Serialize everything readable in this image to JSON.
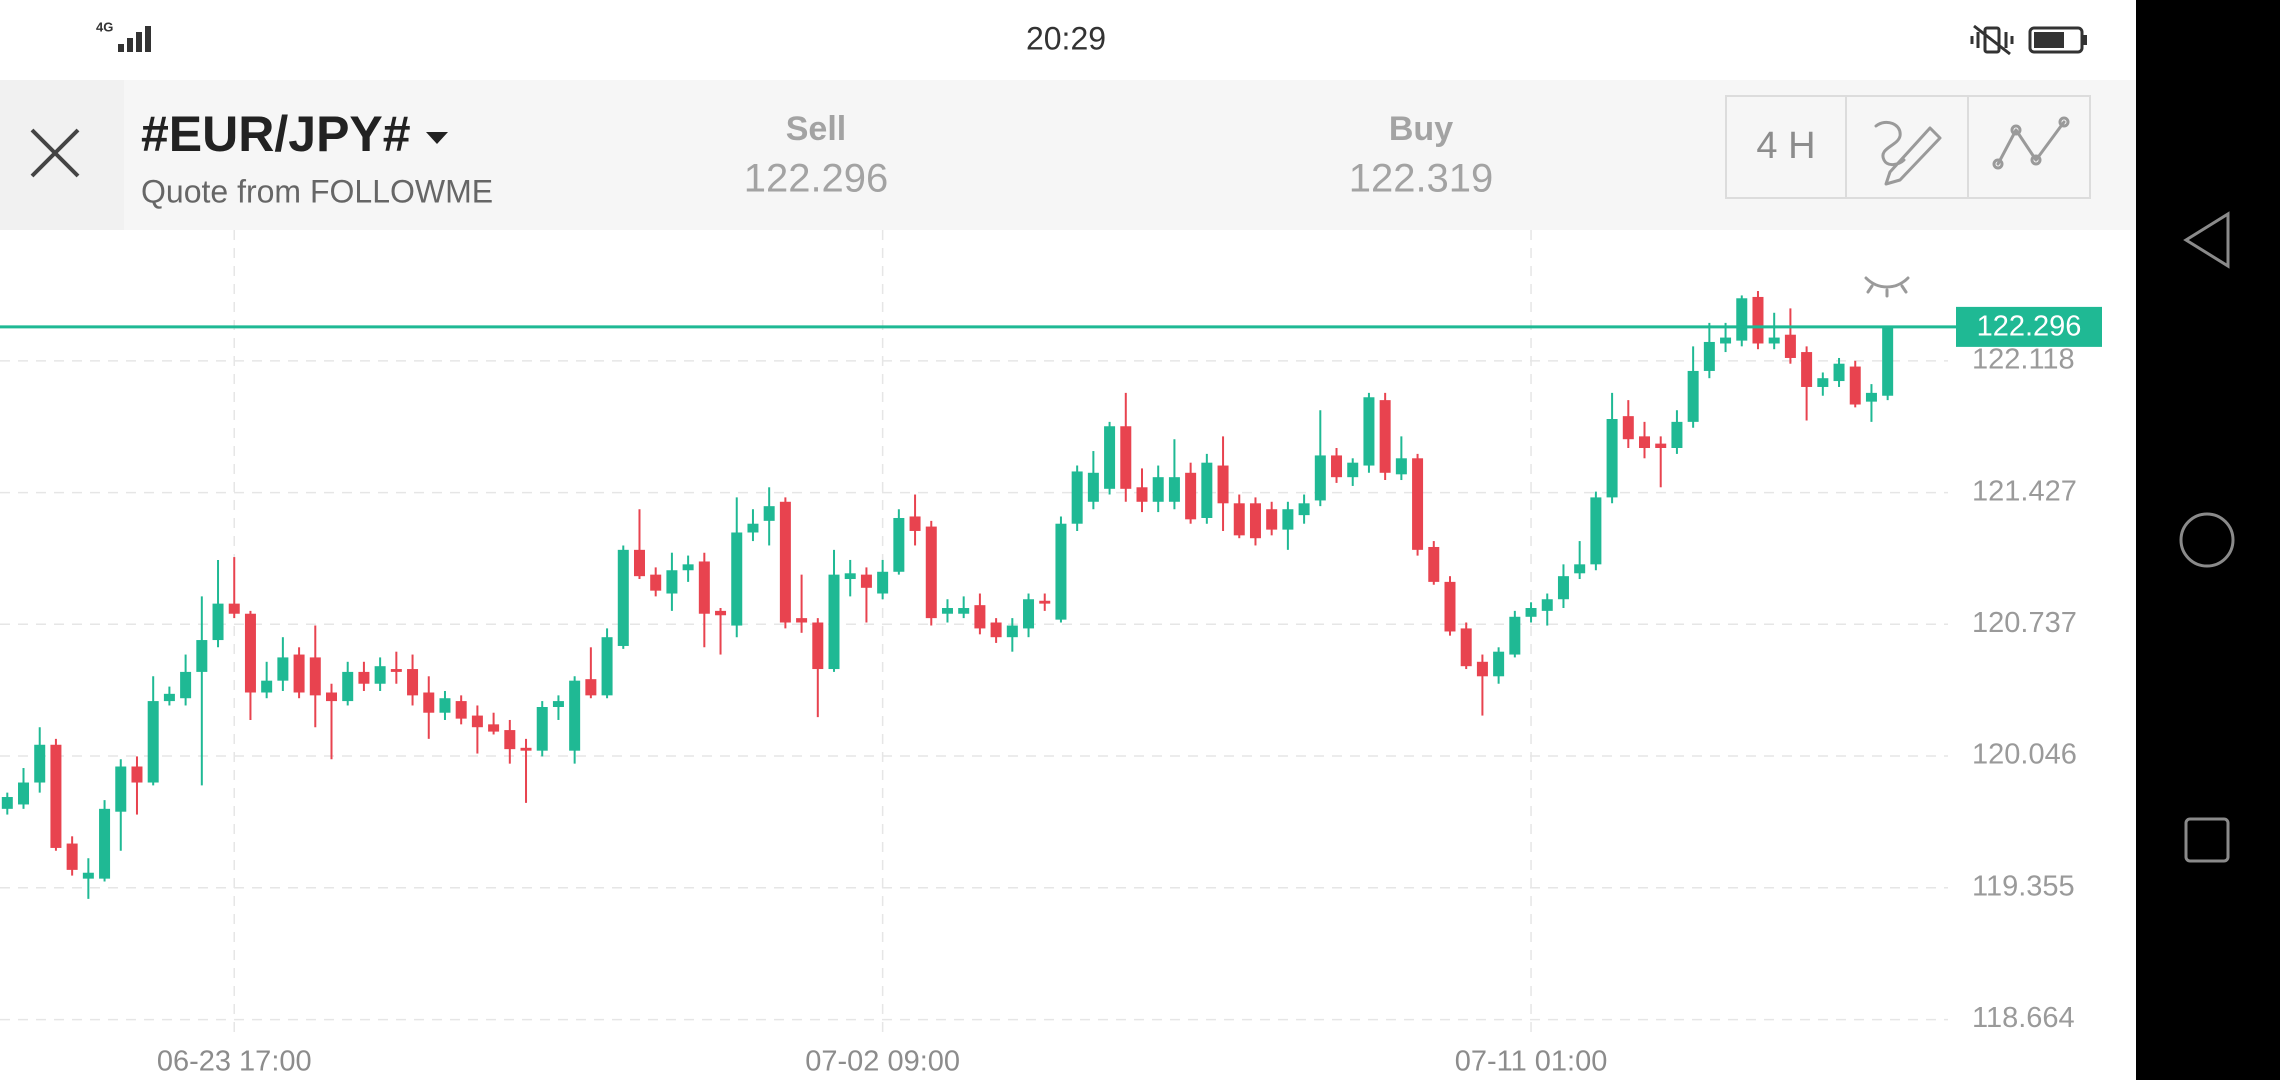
{
  "status_bar": {
    "network": "4G",
    "time": "20:29"
  },
  "header": {
    "symbol": "#EUR/JPY#",
    "source": "Quote from FOLLOWME",
    "sell_label": "Sell",
    "sell": 122.296,
    "buy_label": "Buy",
    "buy": 122.319,
    "timeframe": "4 H"
  },
  "chart_data": {
    "type": "candlestick",
    "categories": [
      null,
      null,
      null,
      null,
      null,
      null,
      null,
      null,
      null,
      null,
      null,
      null,
      null,
      null,
      "06-23 17:00",
      null,
      null,
      null,
      null,
      null,
      null,
      null,
      null,
      null,
      null,
      null,
      null,
      null,
      null,
      null,
      null,
      null,
      null,
      null,
      null,
      null,
      null,
      null,
      null,
      null,
      null,
      null,
      null,
      null,
      null,
      null,
      null,
      null,
      null,
      null,
      null,
      null,
      null,
      null,
      "07-02 09:00",
      null,
      null,
      null,
      null,
      null,
      null,
      null,
      null,
      null,
      null,
      null,
      null,
      null,
      null,
      null,
      null,
      null,
      null,
      null,
      null,
      null,
      null,
      null,
      null,
      null,
      null,
      null,
      null,
      null,
      null,
      null,
      null,
      null,
      null,
      null,
      null,
      null,
      null,
      null,
      "07-11 01:00",
      null,
      null,
      null,
      null,
      null,
      null,
      null,
      null,
      null,
      null,
      null,
      null,
      null,
      null,
      null,
      null,
      null,
      null,
      null,
      null,
      null,
      null
    ],
    "open": [
      119.769,
      119.792,
      119.907,
      120.105,
      119.587,
      119.403,
      119.403,
      119.754,
      119.991,
      119.907,
      120.334,
      120.349,
      120.487,
      120.654,
      120.845,
      120.792,
      120.379,
      120.441,
      120.578,
      120.563,
      120.379,
      120.334,
      120.487,
      120.425,
      120.502,
      120.502,
      120.379,
      120.273,
      120.334,
      120.258,
      120.212,
      120.182,
      120.089,
      120.074,
      120.303,
      120.074,
      120.449,
      120.364,
      120.623,
      121.127,
      120.997,
      120.898,
      121.02,
      121.066,
      120.807,
      120.73,
      121.218,
      121.279,
      121.379,
      120.769,
      120.746,
      120.502,
      120.974,
      120.997,
      120.898,
      121.012,
      121.302,
      121.249,
      120.792,
      120.792,
      120.837,
      120.746,
      120.669,
      120.715,
      120.86,
      120.761,
      121.264,
      121.379,
      121.447,
      121.775,
      121.455,
      121.379,
      121.379,
      121.531,
      121.294,
      121.569,
      121.371,
      121.371,
      121.34,
      121.233,
      121.309,
      121.386,
      121.622,
      121.508,
      121.569,
      121.912,
      121.523,
      121.607,
      121.142,
      120.959,
      120.715,
      120.54,
      120.464,
      120.578,
      120.776,
      120.807,
      120.868,
      121.004,
      121.051,
      121.402,
      121.828,
      121.722,
      121.684,
      121.661,
      121.798,
      122.065,
      122.209,
      122.224,
      122.453,
      122.209,
      122.255,
      122.164,
      121.981,
      122.012,
      122.088,
      121.904,
      121.935
    ],
    "high": [
      119.854,
      119.983,
      120.197,
      120.136,
      119.625,
      119.51,
      119.815,
      120.029,
      120.044,
      120.464,
      120.41,
      120.578,
      120.883,
      121.074,
      121.089,
      120.807,
      120.54,
      120.669,
      120.616,
      120.73,
      120.425,
      120.54,
      120.54,
      120.563,
      120.593,
      120.578,
      120.464,
      120.387,
      120.364,
      120.311,
      120.273,
      120.235,
      120.136,
      120.334,
      120.364,
      120.464,
      120.616,
      120.715,
      121.15,
      121.34,
      121.035,
      121.112,
      121.097,
      121.112,
      120.822,
      121.402,
      121.34,
      121.455,
      121.402,
      120.997,
      120.769,
      121.127,
      121.074,
      121.035,
      121.074,
      121.34,
      121.417,
      121.279,
      120.868,
      120.883,
      120.898,
      120.769,
      120.769,
      120.898,
      120.898,
      121.302,
      121.569,
      121.645,
      121.798,
      121.95,
      121.554,
      121.569,
      121.707,
      121.584,
      121.63,
      121.722,
      121.417,
      121.402,
      121.379,
      121.379,
      121.417,
      121.859,
      121.661,
      121.607,
      121.95,
      121.95,
      121.722,
      121.63,
      121.173,
      120.989,
      120.746,
      120.578,
      120.616,
      120.807,
      120.852,
      120.898,
      121.051,
      121.173,
      121.432,
      121.95,
      121.912,
      121.798,
      121.722,
      121.859,
      122.194,
      122.317,
      122.317,
      122.461,
      122.484,
      122.37,
      122.393,
      122.194,
      122.057,
      122.133,
      122.118,
      121.996,
      122.301
    ],
    "low": [
      119.739,
      119.769,
      119.854,
      119.549,
      119.419,
      119.297,
      119.388,
      119.549,
      119.739,
      119.892,
      120.311,
      120.311,
      119.892,
      120.616,
      120.769,
      120.235,
      120.349,
      120.387,
      120.349,
      120.197,
      120.029,
      120.311,
      120.387,
      120.387,
      120.425,
      120.311,
      120.136,
      120.235,
      120.212,
      120.059,
      120.159,
      120.006,
      119.8,
      120.044,
      120.235,
      120.006,
      120.349,
      120.349,
      120.608,
      120.974,
      120.883,
      120.807,
      120.959,
      120.616,
      120.578,
      120.669,
      121.173,
      121.15,
      120.715,
      120.692,
      120.25,
      120.487,
      120.883,
      120.746,
      120.868,
      120.997,
      121.15,
      120.73,
      120.746,
      120.769,
      120.684,
      120.639,
      120.593,
      120.669,
      120.807,
      120.746,
      121.226,
      121.34,
      121.417,
      121.379,
      121.325,
      121.325,
      121.34,
      121.264,
      121.264,
      121.226,
      121.188,
      121.15,
      121.203,
      121.127,
      121.264,
      121.356,
      121.478,
      121.462,
      121.531,
      121.493,
      121.493,
      121.097,
      120.944,
      120.677,
      120.502,
      120.258,
      120.425,
      120.563,
      120.746,
      120.73,
      120.822,
      120.974,
      121.02,
      121.371,
      121.661,
      121.607,
      121.455,
      121.63,
      121.767,
      122.027,
      122.164,
      122.194,
      122.179,
      122.179,
      122.103,
      121.805,
      121.935,
      121.981,
      121.874,
      121.798,
      121.912
    ],
    "close": [
      119.831,
      119.907,
      120.105,
      119.564,
      119.449,
      119.434,
      119.769,
      119.991,
      119.907,
      120.334,
      120.372,
      120.487,
      120.654,
      120.845,
      120.792,
      120.379,
      120.441,
      120.563,
      120.379,
      120.364,
      120.334,
      120.487,
      120.425,
      120.517,
      120.487,
      120.364,
      120.273,
      120.349,
      120.242,
      120.197,
      120.174,
      120.082,
      120.074,
      120.303,
      120.334,
      120.441,
      120.364,
      120.669,
      121.127,
      120.989,
      120.913,
      121.02,
      121.051,
      120.792,
      120.784,
      121.218,
      121.264,
      121.356,
      120.746,
      120.746,
      120.502,
      120.997,
      121.004,
      120.928,
      121.012,
      121.294,
      121.226,
      120.769,
      120.822,
      120.822,
      120.715,
      120.669,
      120.73,
      120.868,
      120.845,
      121.264,
      121.538,
      121.531,
      121.775,
      121.447,
      121.379,
      121.508,
      121.508,
      121.287,
      121.584,
      121.371,
      121.203,
      121.188,
      121.233,
      121.34,
      121.371,
      121.622,
      121.508,
      121.584,
      121.927,
      121.531,
      121.607,
      121.127,
      120.959,
      120.699,
      120.517,
      120.464,
      120.593,
      120.776,
      120.822,
      120.868,
      120.989,
      121.051,
      121.402,
      121.813,
      121.707,
      121.661,
      121.661,
      121.798,
      122.065,
      122.217,
      122.24,
      122.446,
      122.209,
      122.24,
      122.133,
      121.981,
      122.027,
      122.103,
      121.889,
      121.95,
      122.296
    ],
    "up_color": "#1fb994",
    "down_color": "#e8434f",
    "last_price": 122.296,
    "last_price_color": "#1fb994",
    "ylim": [
      118.557,
      122.804
    ],
    "yticks": [
      118.664,
      119.355,
      120.046,
      120.737,
      121.427,
      122.118
    ],
    "grid": true
  }
}
